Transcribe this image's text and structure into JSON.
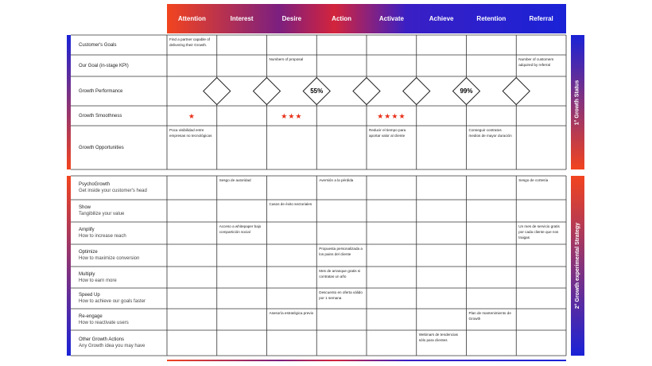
{
  "stages": [
    "Attention",
    "Interest",
    "Desire",
    "Action",
    "Activate",
    "Achieve",
    "Retention",
    "Referral"
  ],
  "status": {
    "title": "1° Growth Status",
    "rows": [
      {
        "label": "Customer's Goals",
        "cells": [
          "Find a partner capable of delivering their Growth.",
          null,
          null,
          null,
          null,
          null,
          null,
          null
        ]
      },
      {
        "label": "Our Goal (in-stage KPI)",
        "cells": [
          null,
          null,
          "Numbers of proposal",
          null,
          null,
          null,
          null,
          "Number of customers adquired by referral"
        ]
      },
      {
        "label": "Growth Performance",
        "markers": [
          null,
          null,
          "55%",
          null,
          null,
          "99%",
          null
        ]
      },
      {
        "label": "Growth Smoothness",
        "cells": [
          "★",
          null,
          "★★★",
          null,
          "★★★★",
          null,
          null,
          null
        ]
      },
      {
        "label": "Growth Opportunities",
        "cells": [
          "Poca visibilidad entre empresas no tecnológicas",
          null,
          null,
          null,
          "Reducir el tiempo para aportar valor al cliente",
          null,
          "Conseguir contratos medios de mayor duración",
          null
        ]
      }
    ]
  },
  "strategy": {
    "title": "2° Growth experimental Strategy",
    "rows": [
      {
        "label": "PsychoGrowth",
        "sub": "Get inside your customer's head",
        "cells": [
          null,
          "Sesgo de autoridad",
          null,
          "Aversión a la pérdida",
          null,
          null,
          null,
          "Sesgo de cortesía"
        ]
      },
      {
        "label": "Show",
        "sub": "Tangibilize your value",
        "cells": [
          null,
          null,
          "Casos de éxito sectoriales",
          null,
          null,
          null,
          null,
          null
        ]
      },
      {
        "label": "Amplify",
        "sub": "How to increase reach",
        "cells": [
          null,
          "Acceso a whitepaper bajo compartición social",
          null,
          null,
          null,
          null,
          null,
          "Un mes de servicio gratis por cada cliente que nos traigas"
        ]
      },
      {
        "label": "Optimize",
        "sub": "How to maximize conversion",
        "cells": [
          null,
          null,
          null,
          "Propuesta personalizada a los pains del cliente",
          null,
          null,
          null,
          null
        ]
      },
      {
        "label": "Multiply",
        "sub": "How to earn more",
        "cells": [
          null,
          null,
          null,
          "Mes de arranque gratis si contratas un año",
          null,
          null,
          null,
          null
        ]
      },
      {
        "label": "Speed Up",
        "sub": "How to achieve our goals faster",
        "cells": [
          null,
          null,
          null,
          "Descuento en oferta válido por 1 semana",
          null,
          null,
          null,
          null
        ]
      },
      {
        "label": "Re-engage",
        "sub": "How to reactivate users",
        "cells": [
          null,
          null,
          "Asesoría estratégica previo",
          null,
          null,
          null,
          "Plan de mantenimiento de Growth",
          null
        ]
      },
      {
        "label": "Other Growth Actions",
        "sub": "Any Growth idea you may have",
        "cells": [
          null,
          null,
          null,
          null,
          null,
          "Webinars de tendencias sólo para clientes",
          null,
          null
        ]
      }
    ]
  }
}
